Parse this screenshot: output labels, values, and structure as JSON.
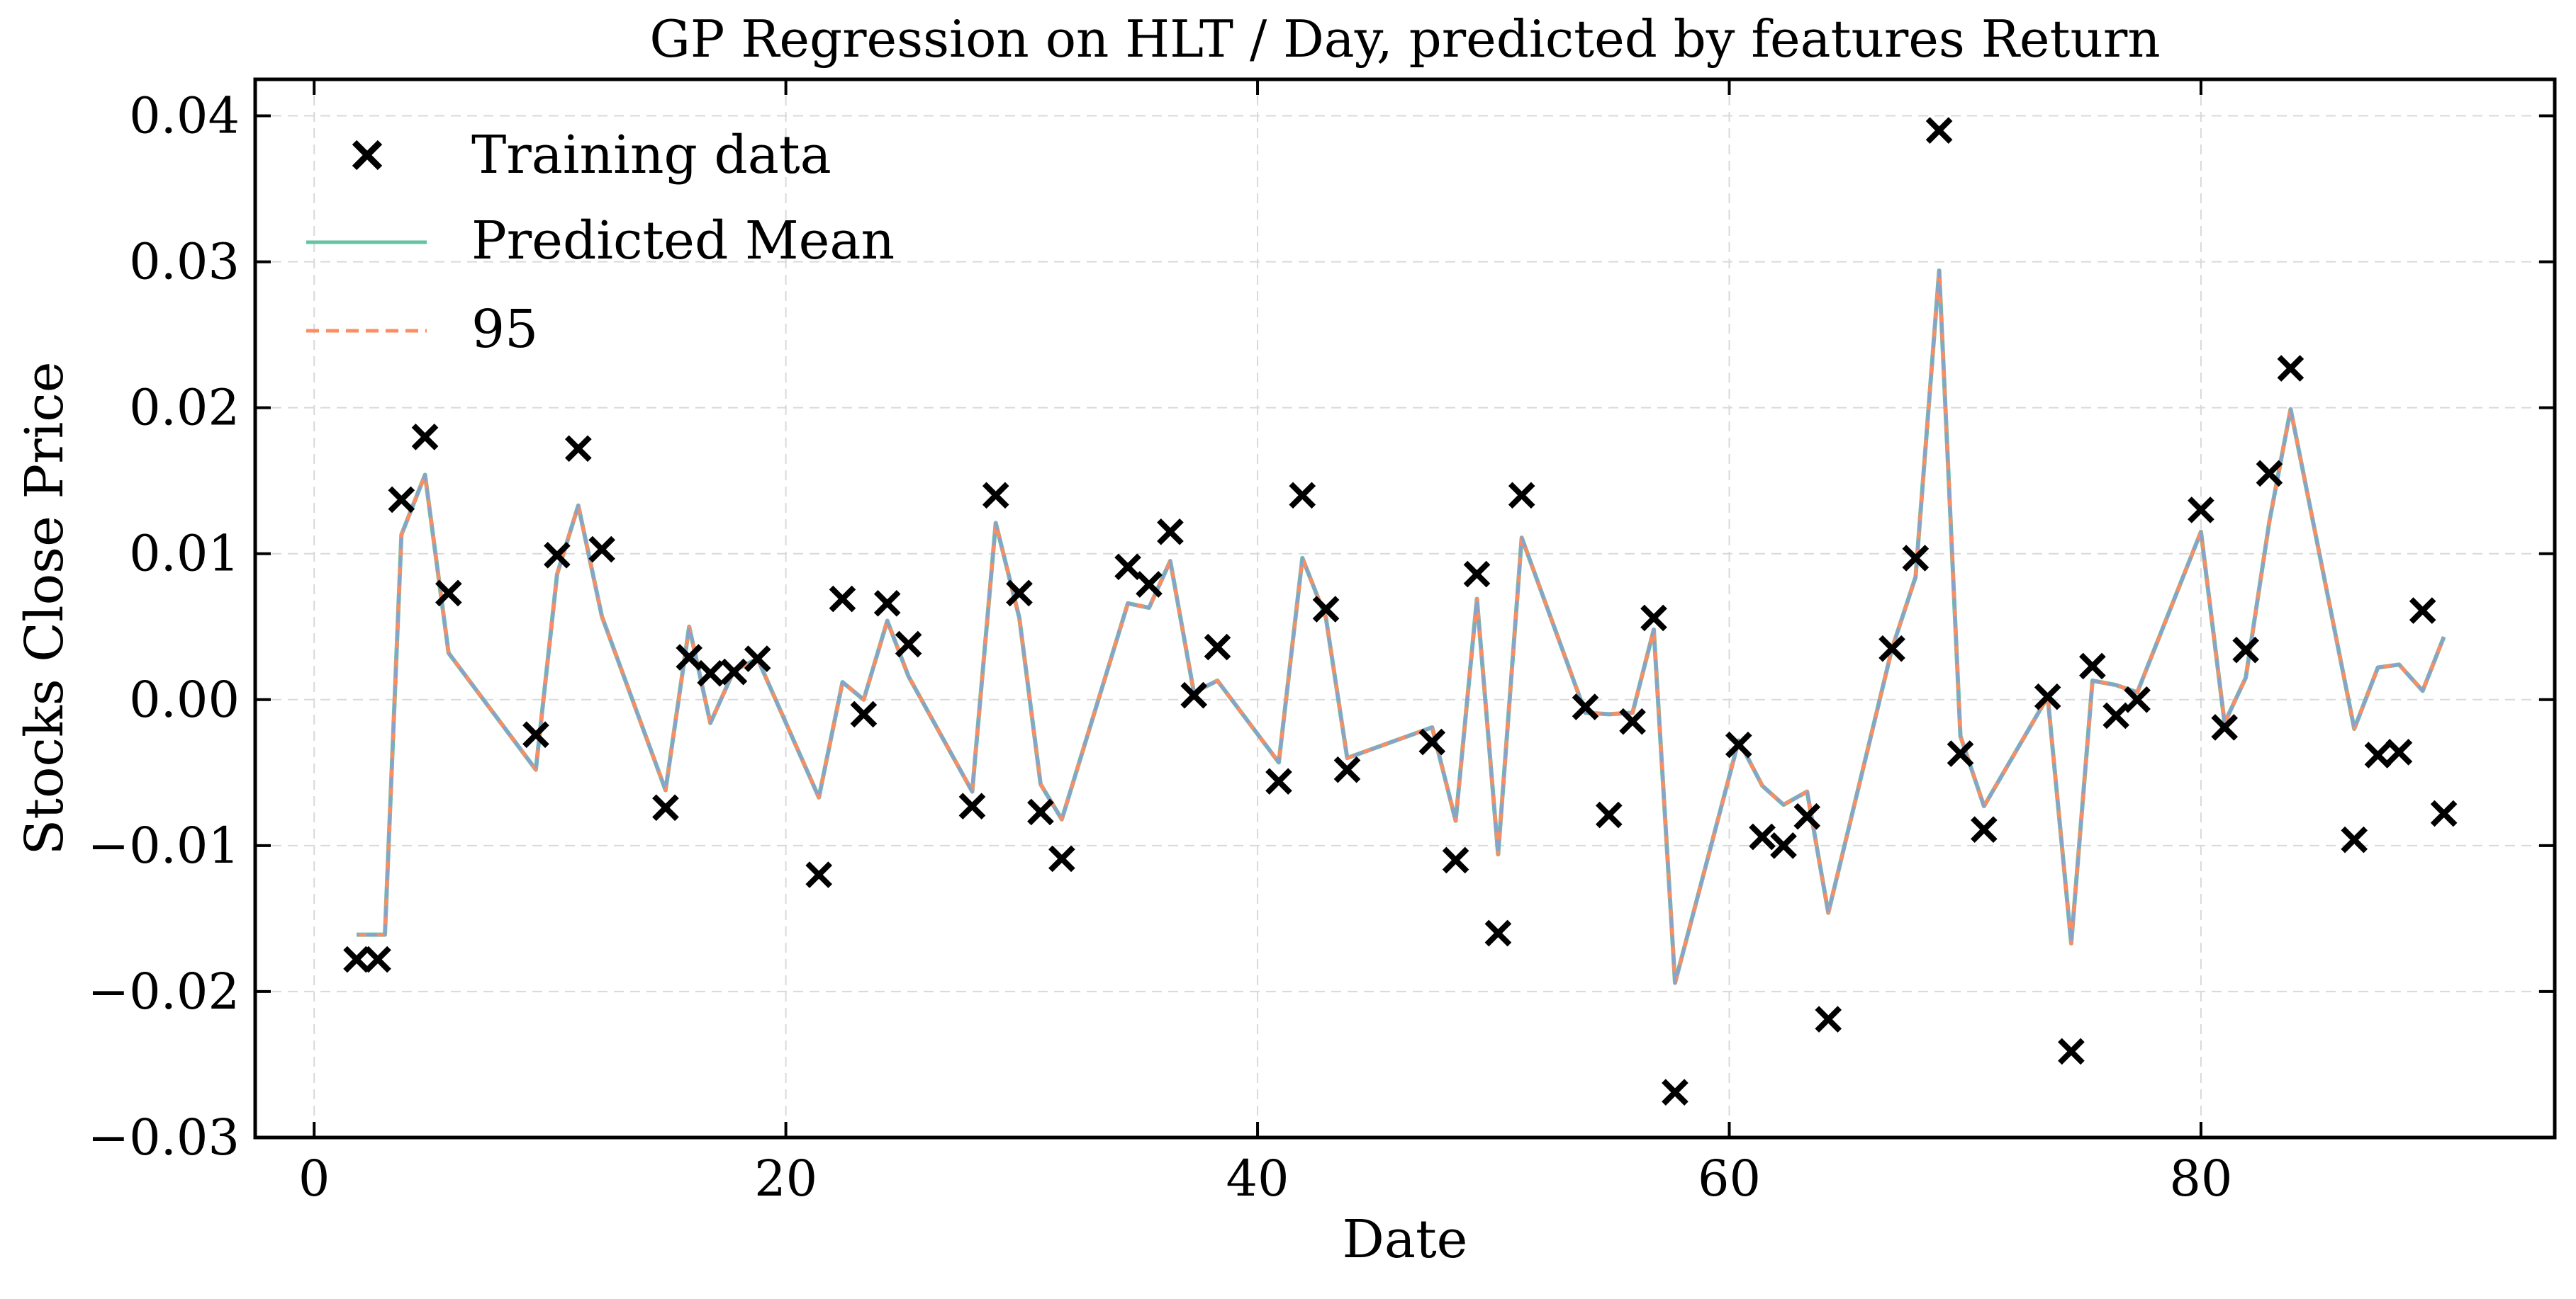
{
  "chart_data": {
    "type": "line",
    "title": "GP Regression on HLT / Day, predicted by features Return",
    "xlabel": "Date",
    "ylabel": "Stocks Close Price",
    "xlim": [
      -2.5,
      95
    ],
    "ylim": [
      -0.03,
      0.0425
    ],
    "x_ticks": [
      0,
      20,
      40,
      60,
      80
    ],
    "x_tick_labels": [
      "0",
      "20",
      "40",
      "60",
      "80"
    ],
    "y_ticks": [
      -0.03,
      -0.02,
      -0.01,
      0.0,
      0.01,
      0.02,
      0.03,
      0.04
    ],
    "y_tick_labels": [
      "−0.03",
      "−0.02",
      "−0.01",
      "0.00",
      "0.01",
      "0.02",
      "0.03",
      "0.04"
    ],
    "grid": true,
    "legend_position": "upper-left",
    "legend": [
      "Training data",
      "Predicted Mean",
      "95"
    ],
    "colors": {
      "training": "#000000",
      "mean": "#66c2a5",
      "ci": "#fc8d62",
      "overlap": "#8da0cb"
    },
    "training": [
      [
        1.8,
        -0.0178
      ],
      [
        2.7,
        -0.0178
      ],
      [
        3.7,
        0.0137
      ],
      [
        4.7,
        0.018
      ],
      [
        5.7,
        0.0073
      ],
      [
        9.4,
        -0.0024
      ],
      [
        10.3,
        0.0099
      ],
      [
        11.2,
        0.0172
      ],
      [
        12.2,
        0.0103
      ],
      [
        14.9,
        -0.0074
      ],
      [
        15.9,
        0.0029
      ],
      [
        16.8,
        0.0018
      ],
      [
        17.8,
        0.0019
      ],
      [
        18.8,
        0.0028
      ],
      [
        21.4,
        -0.012
      ],
      [
        22.4,
        0.0069
      ],
      [
        23.3,
        -0.001
      ],
      [
        24.3,
        0.0066
      ],
      [
        25.2,
        0.0038
      ],
      [
        27.9,
        -0.0073
      ],
      [
        28.9,
        0.014
      ],
      [
        29.9,
        0.0073
      ],
      [
        30.8,
        -0.0077
      ],
      [
        31.7,
        -0.0109
      ],
      [
        34.5,
        0.0091
      ],
      [
        35.4,
        0.0079
      ],
      [
        36.3,
        0.0115
      ],
      [
        37.3,
        0.0003
      ],
      [
        38.3,
        0.0036
      ],
      [
        40.9,
        -0.0056
      ],
      [
        41.9,
        0.014
      ],
      [
        42.9,
        0.0062
      ],
      [
        43.8,
        -0.0048
      ],
      [
        47.4,
        -0.0029
      ],
      [
        48.4,
        -0.011
      ],
      [
        49.3,
        0.0086
      ],
      [
        50.2,
        -0.016
      ],
      [
        51.2,
        0.014
      ],
      [
        53.9,
        -0.0005
      ],
      [
        54.9,
        -0.0079
      ],
      [
        55.9,
        -0.0015
      ],
      [
        56.8,
        0.0056
      ],
      [
        57.7,
        -0.0269
      ],
      [
        60.4,
        -0.0031
      ],
      [
        61.4,
        -0.0094
      ],
      [
        62.3,
        -0.01
      ],
      [
        63.3,
        -0.008
      ],
      [
        64.2,
        -0.0219
      ],
      [
        66.9,
        0.0035
      ],
      [
        67.9,
        0.0097
      ],
      [
        68.9,
        0.039
      ],
      [
        69.8,
        -0.0037
      ],
      [
        70.8,
        -0.0089
      ],
      [
        73.5,
        0.0002
      ],
      [
        74.5,
        -0.0241
      ],
      [
        75.4,
        0.0023
      ],
      [
        76.4,
        -0.0011
      ],
      [
        77.3,
        0.0
      ],
      [
        80.0,
        0.013
      ],
      [
        81.0,
        -0.0019
      ],
      [
        81.9,
        0.0034
      ],
      [
        82.9,
        0.0155
      ],
      [
        83.8,
        0.0227
      ],
      [
        86.5,
        -0.0096
      ],
      [
        87.5,
        -0.0038
      ],
      [
        88.4,
        -0.0036
      ],
      [
        89.4,
        0.0061
      ],
      [
        90.3,
        -0.0078
      ]
    ],
    "mean": [
      [
        1.8,
        -0.0161
      ],
      [
        2.7,
        -0.0161
      ],
      [
        3.0,
        -0.0161
      ],
      [
        3.7,
        0.0113
      ],
      [
        4.7,
        0.0154
      ],
      [
        5.7,
        0.0032
      ],
      [
        9.4,
        -0.0048
      ],
      [
        10.3,
        0.0086
      ],
      [
        11.2,
        0.0133
      ],
      [
        12.2,
        0.0057
      ],
      [
        14.9,
        -0.0062
      ],
      [
        15.9,
        0.005
      ],
      [
        16.8,
        -0.0016
      ],
      [
        17.8,
        0.002
      ],
      [
        18.8,
        0.0028
      ],
      [
        21.4,
        -0.0067
      ],
      [
        22.4,
        0.0012
      ],
      [
        23.3,
        0.0
      ],
      [
        24.3,
        0.0054
      ],
      [
        25.2,
        0.0016
      ],
      [
        27.9,
        -0.0063
      ],
      [
        28.9,
        0.0121
      ],
      [
        29.9,
        0.0056
      ],
      [
        30.8,
        -0.0058
      ],
      [
        31.7,
        -0.0082
      ],
      [
        34.5,
        0.0066
      ],
      [
        35.4,
        0.0063
      ],
      [
        36.3,
        0.0095
      ],
      [
        37.3,
        0.0005
      ],
      [
        38.3,
        0.0013
      ],
      [
        40.9,
        -0.0043
      ],
      [
        41.9,
        0.0097
      ],
      [
        42.9,
        0.0056
      ],
      [
        43.8,
        -0.004
      ],
      [
        47.4,
        -0.0019
      ],
      [
        48.4,
        -0.0083
      ],
      [
        49.3,
        0.0069
      ],
      [
        50.2,
        -0.0106
      ],
      [
        51.2,
        0.0111
      ],
      [
        53.9,
        -0.0009
      ],
      [
        54.9,
        -0.001
      ],
      [
        55.9,
        -0.0009
      ],
      [
        56.8,
        0.0048
      ],
      [
        57.7,
        -0.0194
      ],
      [
        60.4,
        -0.0028
      ],
      [
        61.4,
        -0.0059
      ],
      [
        62.3,
        -0.0072
      ],
      [
        63.3,
        -0.0063
      ],
      [
        64.2,
        -0.0146
      ],
      [
        66.9,
        0.0035
      ],
      [
        67.9,
        0.0084
      ],
      [
        68.9,
        0.0294
      ],
      [
        69.8,
        -0.0025
      ],
      [
        70.8,
        -0.0073
      ],
      [
        73.5,
        0.0002
      ],
      [
        74.5,
        -0.0167
      ],
      [
        75.4,
        0.0013
      ],
      [
        76.4,
        0.001
      ],
      [
        77.3,
        0.0005
      ],
      [
        80.0,
        0.0115
      ],
      [
        81.0,
        -0.0016
      ],
      [
        81.9,
        0.0015
      ],
      [
        82.9,
        0.0122
      ],
      [
        83.8,
        0.0199
      ],
      [
        86.5,
        -0.002
      ],
      [
        87.5,
        0.0022
      ],
      [
        88.4,
        0.0024
      ],
      [
        89.4,
        0.0006
      ],
      [
        90.3,
        0.0043
      ]
    ]
  }
}
